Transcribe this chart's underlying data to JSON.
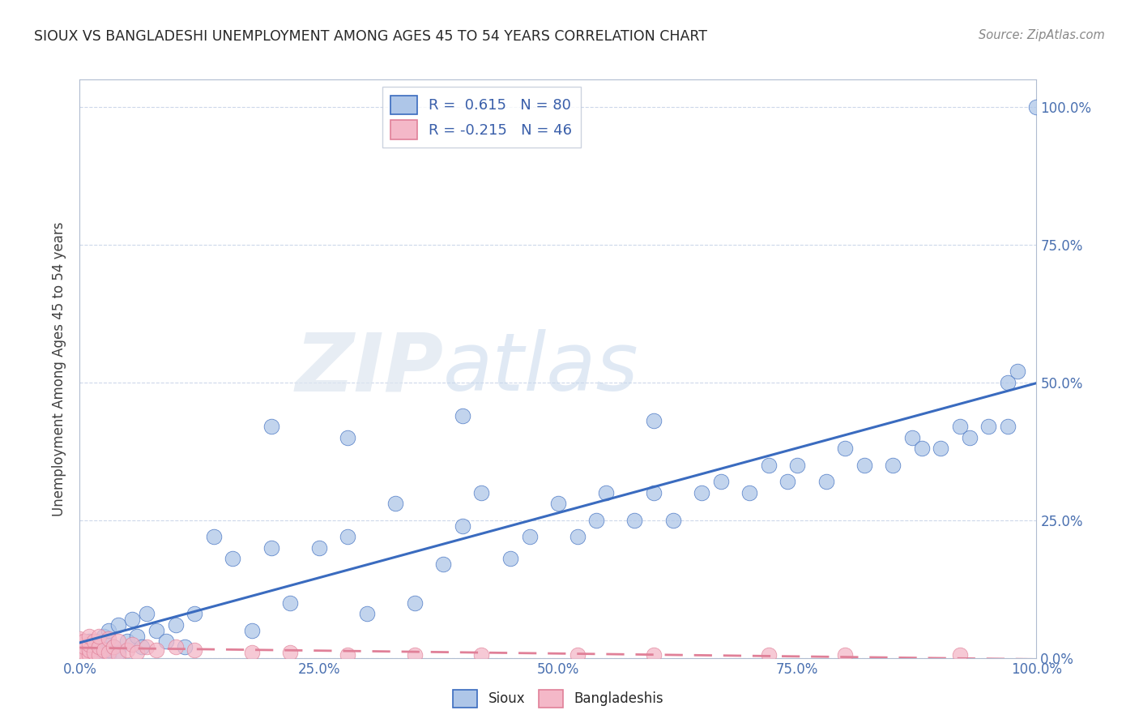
{
  "title": "SIOUX VS BANGLADESHI UNEMPLOYMENT AMONG AGES 45 TO 54 YEARS CORRELATION CHART",
  "source": "Source: ZipAtlas.com",
  "ylabel": "Unemployment Among Ages 45 to 54 years",
  "xlim": [
    0,
    1.0
  ],
  "ylim": [
    0,
    1.05
  ],
  "sioux_color": "#aec6e8",
  "bangladeshi_color": "#f4b8c8",
  "sioux_line_color": "#3a6bbf",
  "bangladeshi_line_color": "#e08098",
  "background_color": "#ffffff",
  "grid_color": "#c8d4e8",
  "R_sioux": 0.615,
  "N_sioux": 80,
  "R_bangladeshi": -0.215,
  "N_bangladeshi": 46,
  "sioux_x": [
    0.0,
    0.0,
    0.0,
    0.0,
    0.0,
    0.005,
    0.005,
    0.01,
    0.01,
    0.01,
    0.01,
    0.015,
    0.015,
    0.02,
    0.02,
    0.02,
    0.025,
    0.025,
    0.03,
    0.03,
    0.03,
    0.035,
    0.04,
    0.04,
    0.05,
    0.055,
    0.06,
    0.065,
    0.07,
    0.08,
    0.09,
    0.1,
    0.11,
    0.12,
    0.14,
    0.16,
    0.18,
    0.2,
    0.22,
    0.25,
    0.28,
    0.3,
    0.33,
    0.35,
    0.38,
    0.4,
    0.42,
    0.45,
    0.47,
    0.5,
    0.52,
    0.54,
    0.55,
    0.58,
    0.6,
    0.62,
    0.65,
    0.67,
    0.7,
    0.72,
    0.74,
    0.75,
    0.78,
    0.8,
    0.82,
    0.85,
    0.87,
    0.88,
    0.9,
    0.92,
    0.93,
    0.95,
    0.97,
    0.97,
    0.98,
    1.0,
    0.2,
    0.28,
    0.4,
    0.6
  ],
  "sioux_y": [
    0.005,
    0.01,
    0.015,
    0.02,
    0.005,
    0.01,
    0.02,
    0.005,
    0.015,
    0.02,
    0.03,
    0.01,
    0.025,
    0.005,
    0.02,
    0.03,
    0.01,
    0.04,
    0.005,
    0.015,
    0.05,
    0.02,
    0.01,
    0.06,
    0.03,
    0.07,
    0.04,
    0.02,
    0.08,
    0.05,
    0.03,
    0.06,
    0.02,
    0.08,
    0.22,
    0.18,
    0.05,
    0.2,
    0.1,
    0.2,
    0.22,
    0.08,
    0.28,
    0.1,
    0.17,
    0.24,
    0.3,
    0.18,
    0.22,
    0.28,
    0.22,
    0.25,
    0.3,
    0.25,
    0.3,
    0.25,
    0.3,
    0.32,
    0.3,
    0.35,
    0.32,
    0.35,
    0.32,
    0.38,
    0.35,
    0.35,
    0.4,
    0.38,
    0.38,
    0.42,
    0.4,
    0.42,
    0.42,
    0.5,
    0.52,
    1.0,
    0.42,
    0.4,
    0.44,
    0.43
  ],
  "bangladeshi_x": [
    0.0,
    0.0,
    0.0,
    0.0,
    0.0,
    0.0,
    0.0,
    0.0,
    0.0,
    0.0,
    0.005,
    0.005,
    0.005,
    0.005,
    0.01,
    0.01,
    0.01,
    0.01,
    0.015,
    0.015,
    0.02,
    0.02,
    0.02,
    0.025,
    0.03,
    0.03,
    0.035,
    0.04,
    0.04,
    0.05,
    0.055,
    0.06,
    0.07,
    0.08,
    0.1,
    0.12,
    0.18,
    0.22,
    0.28,
    0.35,
    0.42,
    0.52,
    0.6,
    0.72,
    0.8,
    0.92
  ],
  "bangladeshi_y": [
    0.005,
    0.008,
    0.01,
    0.012,
    0.015,
    0.018,
    0.02,
    0.025,
    0.03,
    0.035,
    0.005,
    0.01,
    0.02,
    0.03,
    0.005,
    0.015,
    0.025,
    0.04,
    0.01,
    0.03,
    0.005,
    0.02,
    0.04,
    0.015,
    0.01,
    0.035,
    0.02,
    0.005,
    0.03,
    0.015,
    0.025,
    0.01,
    0.02,
    0.015,
    0.02,
    0.015,
    0.01,
    0.01,
    0.005,
    0.005,
    0.005,
    0.005,
    0.005,
    0.005,
    0.005,
    0.005
  ]
}
